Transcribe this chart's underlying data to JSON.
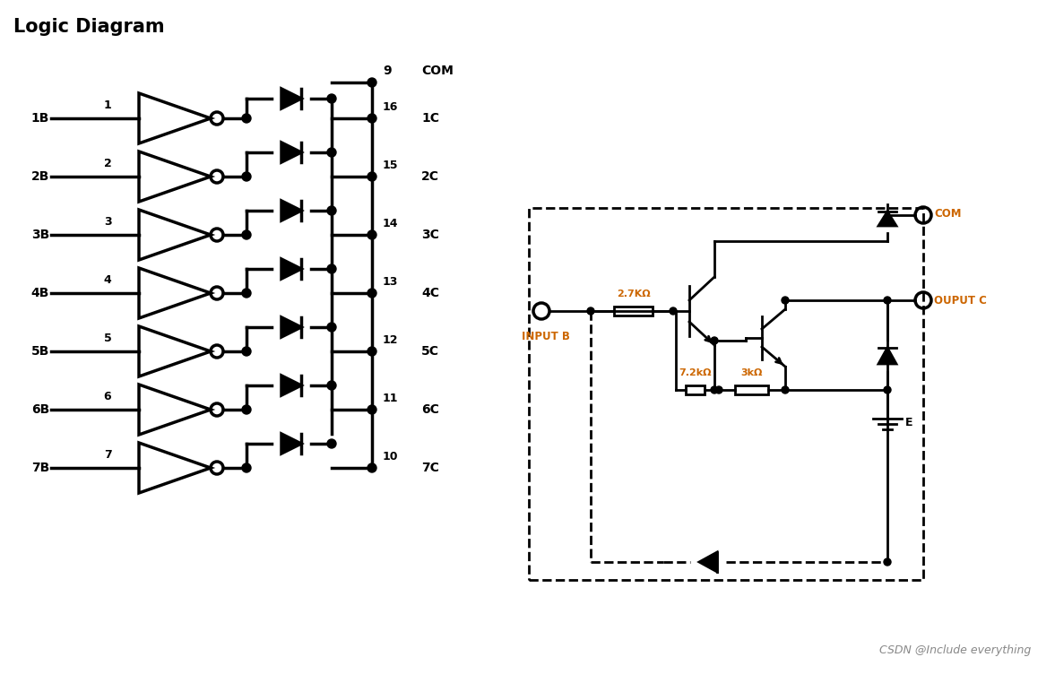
{
  "title": "Logic Diagram",
  "background_color": "#ffffff",
  "text_color": "#000000",
  "line_color": "#000000",
  "pin_labels_left": [
    "1B",
    "2B",
    "3B",
    "4B",
    "5B",
    "6B",
    "7B"
  ],
  "pin_numbers_left": [
    "1",
    "2",
    "3",
    "4",
    "5",
    "6",
    "7"
  ],
  "pin_numbers_right": [
    "16",
    "15",
    "14",
    "13",
    "12",
    "11",
    "10"
  ],
  "pin_labels_right": [
    "1C",
    "2C",
    "3C",
    "4C",
    "5C",
    "6C",
    "7C"
  ],
  "com_pin": "9",
  "com_label": "COM",
  "watermark": "CSDN @Include everything",
  "input_label": "INPUT B",
  "output_label": "OUPUT C",
  "res1_label": "2.7KΩ",
  "res2_label": "7.2kΩ",
  "res3_label": "3kΩ",
  "ground_label": "E",
  "orange_color": "#cc6600"
}
